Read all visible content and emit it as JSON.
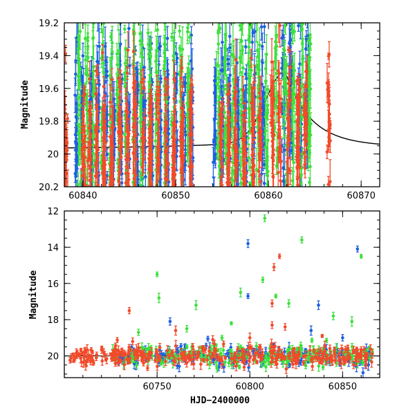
{
  "chart_data": [
    {
      "type": "scatter",
      "panel": "top",
      "title": "",
      "xlabel": "",
      "ylabel": "Magnitude",
      "xlim": [
        60838,
        60872
      ],
      "ylim": [
        20.2,
        19.2
      ],
      "y_inverted": true,
      "xticks": [
        60840,
        60850,
        60860,
        60870
      ],
      "yticks": [
        19.2,
        19.4,
        19.6,
        19.8,
        20,
        20.2
      ],
      "xtick_labels": [
        "60840",
        "60850",
        "60860",
        "60870"
      ],
      "ytick_labels": [
        "19.2",
        "19.4",
        "19.6",
        "19.8",
        "20",
        "20.2"
      ],
      "grid": false,
      "series": [
        {
          "color": "#1f5fe0",
          "epochs": [
            60839.3,
            60839.9,
            60840.9,
            60841.6,
            60842.5,
            60843.3,
            60844.1,
            60844.9,
            60845.8,
            60846.6,
            60847.4,
            60848.3,
            60849.1,
            60850.0,
            60850.9,
            60851.7,
            60854.2,
            60855.0,
            60855.8,
            60856.7,
            60857.5,
            60858.4,
            60859.4,
            60861.6,
            60862.4,
            60863.4,
            60864.2
          ],
          "mag_center": 19.85,
          "mag_spread": 0.3
        },
        {
          "color": "#3de03d",
          "epochs": [
            60839.6,
            60840.4,
            60841.2,
            60842.1,
            60843.0,
            60843.8,
            60844.6,
            60845.5,
            60846.3,
            60847.2,
            60848.0,
            60848.9,
            60849.7,
            60850.6,
            60851.4,
            60854.6,
            60855.4,
            60856.2,
            60857.1,
            60858.0,
            60858.9,
            60859.8,
            60860.8,
            60861.8,
            60862.7,
            60863.6,
            60864.4
          ],
          "mag_center": 19.7,
          "mag_spread": 0.42
        },
        {
          "color": "#f24a2a",
          "epochs": [
            60838.2,
            60840.1,
            60840.7,
            60841.5,
            60842.3,
            60843.1,
            60844.0,
            60844.8,
            60845.6,
            60846.5,
            60847.3,
            60848.1,
            60849.0,
            60849.8,
            60850.7,
            60851.6,
            60854.9,
            60855.7,
            60856.5,
            60857.4,
            60858.3,
            60859.1,
            60860.4,
            60861.2,
            60862.2,
            60863.2,
            60864.0,
            60866.5
          ],
          "mag_center": 19.95,
          "mag_spread": 0.22
        }
      ],
      "model_curve": {
        "color": "#000000",
        "t0": 60861.8,
        "baseline": 19.97,
        "peak_magnitude": 19.5,
        "sigma_rise": 2.1,
        "decay_tau": 2.6
      }
    },
    {
      "type": "scatter",
      "panel": "bottom",
      "title": "",
      "xlabel": "HJD−2400000",
      "ylabel": "Magnitude",
      "xlim": [
        60700,
        60870
      ],
      "ylim": [
        21.2,
        12
      ],
      "y_inverted": true,
      "xticks": [
        60750,
        60800,
        60850
      ],
      "yticks": [
        12,
        14,
        16,
        18,
        20
      ],
      "xtick_labels": [
        "60750",
        "60800",
        "60850"
      ],
      "ytick_labels": [
        "12",
        "14",
        "16",
        "18",
        "20"
      ],
      "grid": false,
      "baseline_magnitude": 20,
      "series": [
        {
          "color": "#1f5fe0",
          "time_range": [
            60728,
            60867
          ],
          "count": 190,
          "outliers": [
            [
              60799,
              13.8
            ],
            [
              60799,
              16.7
            ],
            [
              60837,
              17.2
            ],
            [
              60757,
              18.1
            ],
            [
              60833,
              18.6
            ],
            [
              60858,
              14.1
            ],
            [
              60850,
              19.0
            ]
          ]
        },
        {
          "color": "#3de03d",
          "time_range": [
            60726,
            60867
          ],
          "count": 210,
          "outliers": [
            [
              60808,
              12.4
            ],
            [
              60828,
              13.6
            ],
            [
              60860,
              14.5
            ],
            [
              60750,
              15.5
            ],
            [
              60807,
              15.8
            ],
            [
              60751,
              16.8
            ],
            [
              60795,
              16.5
            ],
            [
              60771,
              17.2
            ],
            [
              60821,
              17.1
            ],
            [
              60814,
              16.7
            ],
            [
              60740,
              18.7
            ],
            [
              60790,
              18.2
            ],
            [
              60845,
              17.8
            ],
            [
              60855,
              18.1
            ],
            [
              60766,
              18.5
            ],
            [
              60785,
              19.0
            ]
          ]
        },
        {
          "color": "#f24a2a",
          "time_range": [
            60703,
            60867
          ],
          "count": 320,
          "outliers": [
            [
              60813,
              15.1
            ],
            [
              60816,
              14.5
            ],
            [
              60812,
              17.1
            ],
            [
              60735,
              17.5
            ],
            [
              60760,
              18.6
            ],
            [
              60812,
              18.3
            ],
            [
              60819,
              18.4
            ],
            [
              60800,
              19.0
            ],
            [
              60780,
              19.1
            ],
            [
              60839,
              18.9
            ]
          ]
        }
      ]
    }
  ]
}
